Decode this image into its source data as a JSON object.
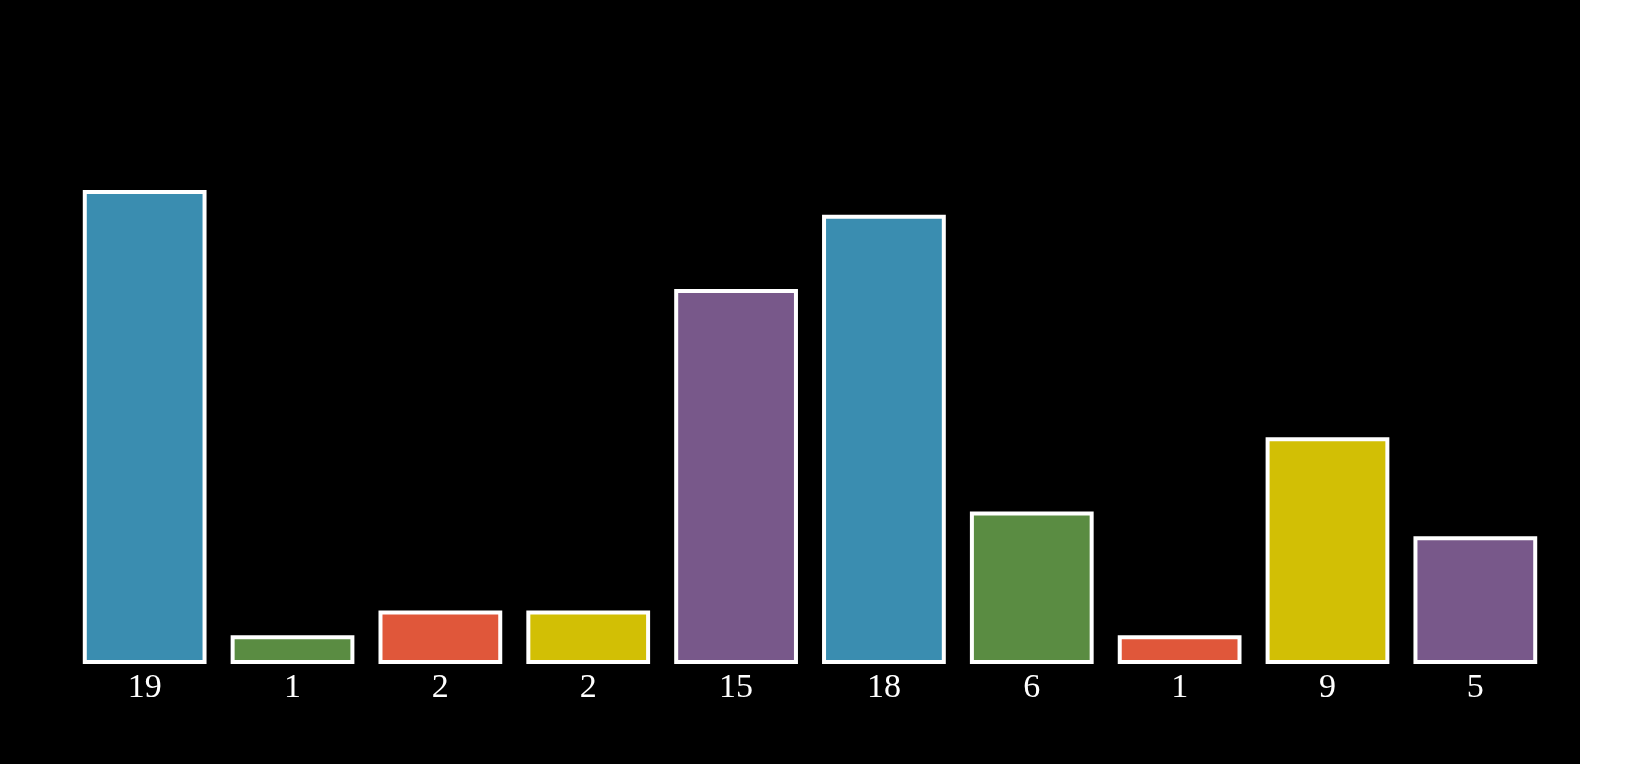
{
  "chart_data": {
    "type": "bar",
    "categories": [
      null,
      null,
      null,
      null,
      null,
      null,
      null,
      null,
      null,
      null
    ],
    "values": [
      19,
      1,
      2,
      2,
      15,
      18,
      6,
      1,
      9,
      5
    ],
    "colors": [
      "#3a8db0",
      "#5a8c42",
      "#e0573a",
      "#d2bf05",
      "#78588a",
      "#3a8db0",
      "#5a8c42",
      "#e0573a",
      "#d2bf05",
      "#78588a"
    ],
    "data_labels": true,
    "grid": false
  }
}
